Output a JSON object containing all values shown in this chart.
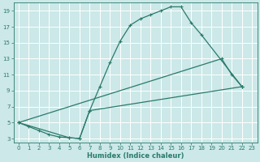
{
  "xlabel": "Humidex (Indice chaleur)",
  "bg_color": "#cce8e8",
  "line_color": "#2a7a6a",
  "grid_color": "#ffffff",
  "xlim": [
    -0.5,
    23.5
  ],
  "ylim": [
    2.5,
    20.0
  ],
  "xticks": [
    0,
    1,
    2,
    3,
    4,
    5,
    6,
    7,
    8,
    9,
    10,
    11,
    12,
    13,
    14,
    15,
    16,
    17,
    18,
    19,
    20,
    21,
    22,
    23
  ],
  "yticks": [
    3,
    5,
    7,
    9,
    11,
    13,
    15,
    17,
    19
  ],
  "lines": [
    {
      "x": [
        0,
        1,
        2,
        3,
        4,
        5,
        6,
        7,
        8,
        9,
        10,
        11,
        12,
        13,
        14,
        15,
        16,
        17,
        18,
        22
      ],
      "y": [
        5,
        4.5,
        4,
        3.5,
        3.2,
        3.1,
        3.0,
        6.5,
        9.5,
        12.5,
        15.2,
        17.2,
        18.0,
        18.5,
        19.0,
        19.5,
        19.5,
        17.5,
        16.0,
        9.5
      ]
    },
    {
      "x": [
        0,
        20,
        21,
        22
      ],
      "y": [
        5,
        13,
        11.0,
        9.5
      ]
    },
    {
      "x": [
        0,
        5,
        6,
        7,
        22
      ],
      "y": [
        5,
        3.1,
        3.0,
        6.5,
        9.5
      ]
    }
  ]
}
